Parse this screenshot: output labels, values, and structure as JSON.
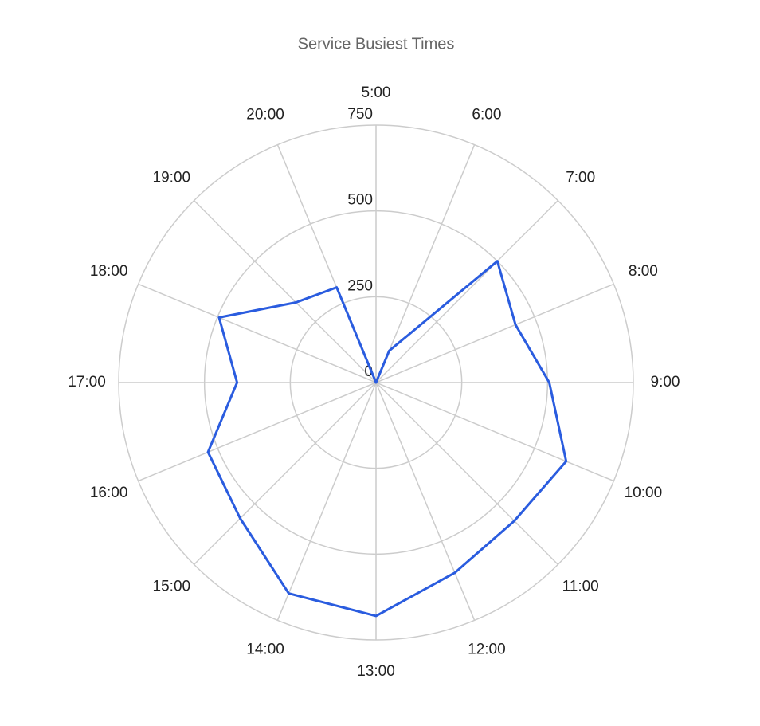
{
  "chart_data": {
    "type": "radar",
    "title": "Service Busiest Times",
    "categories": [
      "5:00",
      "6:00",
      "7:00",
      "8:00",
      "9:00",
      "10:00",
      "11:00",
      "12:00",
      "13:00",
      "14:00",
      "15:00",
      "16:00",
      "17:00",
      "18:00",
      "19:00",
      "20:00"
    ],
    "values": [
      0,
      100,
      500,
      440,
      505,
      600,
      570,
      600,
      680,
      665,
      560,
      530,
      405,
      495,
      330,
      300
    ],
    "color": "#2a5cdf",
    "rlim": [
      0,
      750
    ],
    "rticks": [
      0,
      250,
      500,
      750
    ],
    "grid": true
  }
}
